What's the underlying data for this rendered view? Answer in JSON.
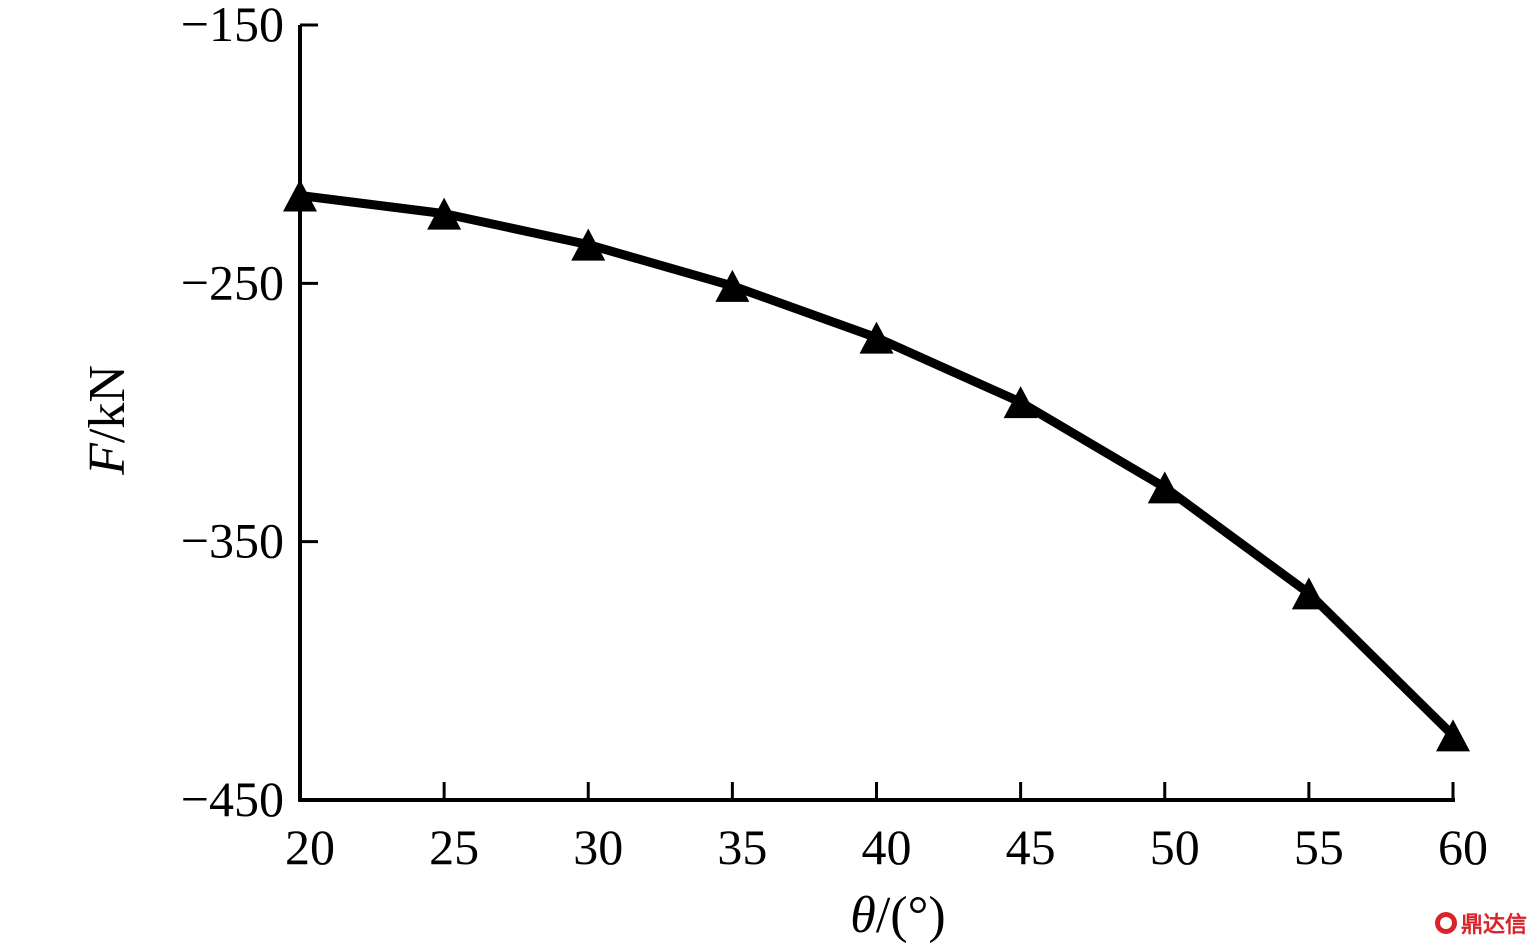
{
  "chart_data": {
    "type": "line",
    "title": "",
    "xlabel_var": "θ",
    "xlabel_unit": "/(°)",
    "ylabel_var": "F",
    "ylabel_unit": "/kN",
    "xlim": [
      20,
      60
    ],
    "ylim": [
      -450,
      -150
    ],
    "x_ticks": [
      20,
      25,
      30,
      35,
      40,
      45,
      50,
      55,
      60
    ],
    "y_ticks": [
      -150,
      -250,
      -350,
      -450
    ],
    "y_tick_labels": [
      "−150",
      "−250",
      "−350",
      "−450"
    ],
    "grid": false,
    "marker": "triangle",
    "series": [
      {
        "x": [
          20,
          25,
          30,
          35,
          40,
          45,
          50,
          55,
          60
        ],
        "values": [
          -216,
          -223,
          -235,
          -251,
          -271,
          -296,
          -329,
          -370,
          -425
        ],
        "color": "#000000"
      }
    ]
  },
  "watermark": {
    "text": "鼎达信",
    "color": "#d8232a"
  }
}
